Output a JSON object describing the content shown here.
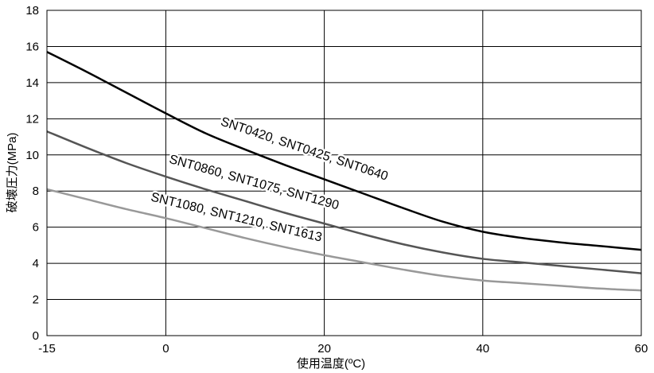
{
  "chart_data": {
    "type": "line",
    "title": "",
    "xlabel": "使用温度(ºC)",
    "ylabel": "破壊圧力(MPa)",
    "xlim": [
      -15,
      60
    ],
    "ylim": [
      0,
      18
    ],
    "xticks": [
      -15,
      0,
      20,
      40,
      60
    ],
    "yticks": [
      0,
      2,
      4,
      6,
      8,
      10,
      12,
      14,
      16,
      18
    ],
    "grid": true,
    "series": [
      {
        "name": "SNT0420, SNT0425, SNT0640",
        "color": "#000000",
        "x": [
          -15,
          -10,
          -5,
          0,
          5,
          10,
          15,
          20,
          25,
          30,
          35,
          40,
          45,
          50,
          55,
          60
        ],
        "y": [
          15.7,
          14.6,
          13.45,
          12.3,
          11.2,
          10.3,
          9.45,
          8.65,
          7.85,
          7.05,
          6.3,
          5.75,
          5.4,
          5.15,
          4.95,
          4.75
        ]
      },
      {
        "name": "SNT0860, SNT1075, SNT1290",
        "color": "#555555",
        "x": [
          -15,
          -10,
          -5,
          0,
          5,
          10,
          15,
          20,
          25,
          30,
          35,
          40,
          45,
          50,
          55,
          60
        ],
        "y": [
          11.3,
          10.4,
          9.55,
          8.8,
          8.1,
          7.45,
          6.8,
          6.2,
          5.6,
          5.05,
          4.6,
          4.25,
          4.05,
          3.85,
          3.65,
          3.45
        ]
      },
      {
        "name": "SNT1080, SNT1210, SNT1613",
        "color": "#999999",
        "x": [
          -15,
          -10,
          -5,
          0,
          5,
          10,
          15,
          20,
          25,
          30,
          35,
          40,
          45,
          50,
          55,
          60
        ],
        "y": [
          8.1,
          7.55,
          7.0,
          6.5,
          5.95,
          5.4,
          4.9,
          4.45,
          4.05,
          3.65,
          3.3,
          3.05,
          2.9,
          2.75,
          2.6,
          2.5
        ]
      }
    ]
  }
}
